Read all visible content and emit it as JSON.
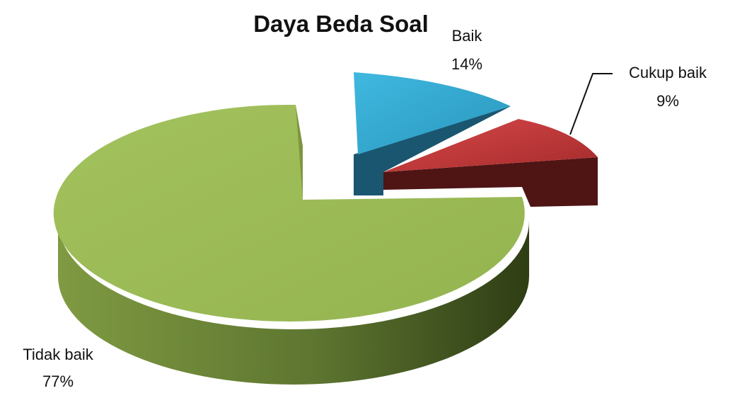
{
  "chart_data": {
    "type": "pie",
    "title": "Daya Beda Soal",
    "slices": [
      {
        "label": "Baik",
        "percent_label": "14%",
        "value": 14,
        "color": "#31b0d8",
        "exploded": true
      },
      {
        "label": "Cukup baik",
        "percent_label": "9%",
        "value": 9,
        "color": "#c0393b",
        "exploded": true
      },
      {
        "label": "Tidak baik",
        "percent_label": "77%",
        "value": 77,
        "color": "#9dbb58",
        "exploded": false
      }
    ],
    "style": "3d-exploded-pie",
    "legend": "none"
  }
}
